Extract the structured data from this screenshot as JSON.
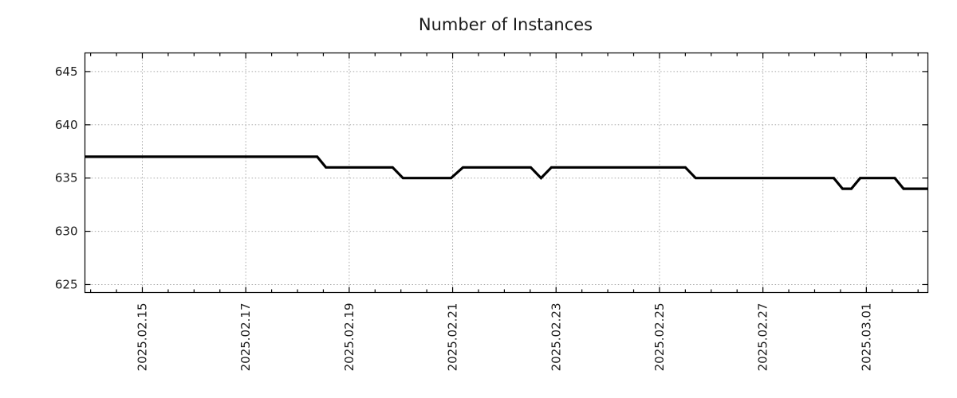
{
  "header": {
    "title": "Number of Instances"
  },
  "chart_data": {
    "type": "line",
    "title": "Number of Instances",
    "x_axis": {
      "label": "",
      "tick_labels": [
        "2025.02.15",
        "2025.02.17",
        "2025.02.19",
        "2025.02.21",
        "2025.02.23",
        "2025.02.25",
        "2025.02.27",
        "2025.03.01"
      ],
      "tick_positions_days": [
        0,
        2,
        4,
        6,
        8,
        10,
        12,
        14
      ],
      "minor_tick_interval_days": 0.5,
      "range_days": [
        -1.11,
        15.19
      ],
      "labels_rotated_degrees": -90
    },
    "y_axis": {
      "label": "",
      "ticks": [
        625,
        630,
        635,
        640,
        645
      ],
      "range": [
        624.25,
        646.75
      ]
    },
    "grid": "dotted-on-major-ticks",
    "legend_position": "none",
    "series": [
      {
        "name": "Number of Instances",
        "color": "#000000",
        "line_width": 3.2,
        "points_days_value": [
          [
            -1.11,
            637
          ],
          [
            3.38,
            637
          ],
          [
            3.55,
            636
          ],
          [
            4.84,
            636
          ],
          [
            5.04,
            635
          ],
          [
            5.97,
            635
          ],
          [
            6.2,
            636
          ],
          [
            7.51,
            636
          ],
          [
            7.71,
            635
          ],
          [
            7.91,
            636
          ],
          [
            10.5,
            636
          ],
          [
            10.7,
            635
          ],
          [
            13.37,
            635
          ],
          [
            13.54,
            634
          ],
          [
            13.71,
            634
          ],
          [
            13.88,
            635
          ],
          [
            14.55,
            635
          ],
          [
            14.72,
            634
          ],
          [
            15.19,
            634
          ]
        ]
      }
    ]
  },
  "colors": {
    "background": "#ffffff",
    "axis": "#000000",
    "grid": "#a8a8a8",
    "text": "#1b1b1b",
    "line": "#000000"
  }
}
